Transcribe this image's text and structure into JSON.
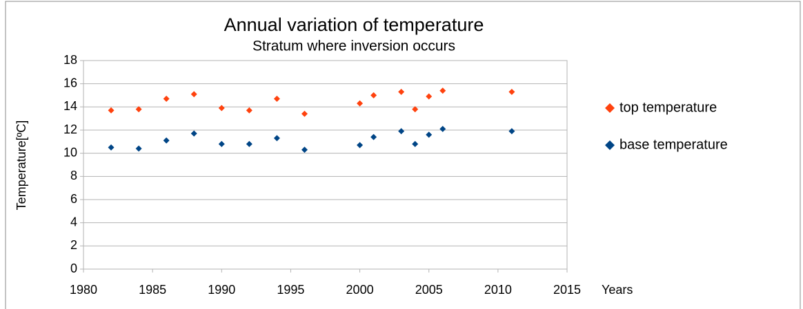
{
  "chart_data": {
    "type": "scatter",
    "title": "Annual variation of temperature",
    "subtitle": "Stratum where inversion occurs",
    "x_label": "Years",
    "y_label": "Temperature[ºC]",
    "x": [
      1982,
      1984,
      1986,
      1988,
      1990,
      1992,
      1994,
      1996,
      2000,
      2001,
      2003,
      2004,
      2005,
      2006,
      2011
    ],
    "series": [
      {
        "name": "top temperature",
        "color": "#ff420e",
        "values": [
          13.7,
          13.8,
          14.7,
          15.1,
          13.9,
          13.7,
          14.7,
          13.4,
          14.3,
          15.0,
          15.3,
          13.8,
          14.9,
          15.4,
          15.3
        ]
      },
      {
        "name": "base temperature",
        "color": "#004586",
        "values": [
          10.5,
          10.4,
          11.1,
          11.7,
          10.8,
          10.8,
          11.3,
          10.3,
          10.7,
          11.4,
          11.9,
          10.8,
          11.6,
          12.1,
          11.9
        ]
      }
    ],
    "xlim": [
      1980,
      2015
    ],
    "xticks": [
      1980,
      1985,
      1990,
      1995,
      2000,
      2005,
      2010,
      2015
    ],
    "ylim": [
      0,
      18
    ],
    "yticks": [
      0,
      2,
      4,
      6,
      8,
      10,
      12,
      14,
      16,
      18
    ],
    "grid": true,
    "legend": "right"
  }
}
